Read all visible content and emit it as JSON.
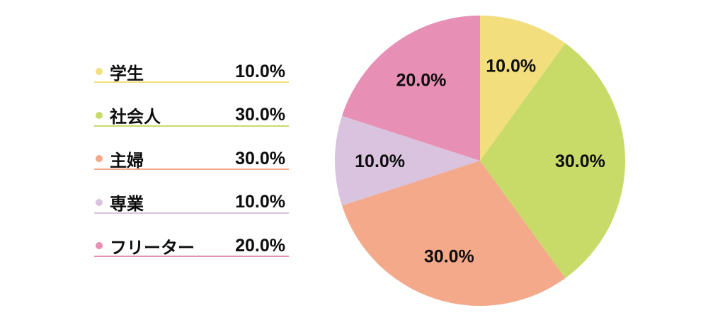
{
  "page": {
    "background_color": "#ffffff"
  },
  "chart_data": {
    "type": "pie",
    "title": "",
    "categories": [
      "学生",
      "社会人",
      "主婦",
      "専業",
      "フリーター"
    ],
    "values": [
      10.0,
      30.0,
      30.0,
      10.0,
      20.0
    ],
    "value_labels": [
      "10.0%",
      "30.0%",
      "30.0%",
      "10.0%",
      "20.0%"
    ],
    "colors": [
      "#F2DE7D",
      "#C8DA68",
      "#F3A98A",
      "#D9C3DE",
      "#E78FB5"
    ],
    "start_angle_deg": 90,
    "direction": "clockwise",
    "label_radius_ratio": 0.69,
    "label_text_color": "#0d0d0d",
    "legend_position": "left",
    "legend": [
      {
        "label": "学生",
        "value": "10.0%",
        "color": "#F2DE7D"
      },
      {
        "label": "社会人",
        "value": "30.0%",
        "color": "#C8DA68"
      },
      {
        "label": "主婦",
        "value": "30.0%",
        "color": "#F3A98A"
      },
      {
        "label": "専業",
        "value": "10.0%",
        "color": "#D9C3DE"
      },
      {
        "label": "フリーター",
        "value": "20.0%",
        "color": "#E78FB5"
      }
    ]
  }
}
